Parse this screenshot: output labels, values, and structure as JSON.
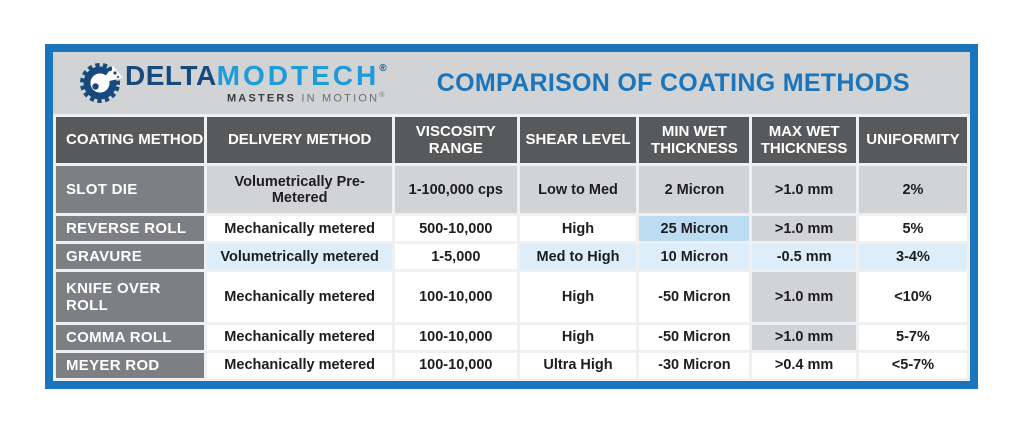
{
  "logo": {
    "delta": "DELTA",
    "modtech": "MODTECH",
    "reg": "®",
    "tagline_bold": "MASTERS",
    "tagline_rest": " IN MOTION",
    "tagline_reg": "®"
  },
  "title": "COMPARISON OF COATING METHODS",
  "chart_data": {
    "type": "table",
    "columns": [
      "COATING METHOD",
      "DELIVERY METHOD",
      "VISCOSITY\nRANGE",
      "SHEAR LEVEL",
      "MIN WET\nTHICKNESS",
      "MAX WET\nTHICKNESS",
      "UNIFORMITY"
    ],
    "rows": [
      {
        "label": "SLOT DIE",
        "cells": [
          {
            "text": "Volumetrically Pre-Metered",
            "bg": "gray"
          },
          {
            "text": "1-100,000 cps",
            "bg": "gray"
          },
          {
            "text": "Low to Med",
            "bg": "gray"
          },
          {
            "text": "2 Micron",
            "bg": "gray"
          },
          {
            "text": ">1.0 mm",
            "bg": "gray"
          },
          {
            "text": "2%",
            "bg": "gray"
          }
        ]
      },
      {
        "label": "REVERSE ROLL",
        "cells": [
          {
            "text": "Mechanically metered",
            "bg": "white"
          },
          {
            "text": "500-10,000",
            "bg": "white"
          },
          {
            "text": "High",
            "bg": "white"
          },
          {
            "text": "25 Micron",
            "bg": "blue"
          },
          {
            "text": ">1.0 mm",
            "bg": "gray"
          },
          {
            "text": "5%",
            "bg": "white"
          }
        ]
      },
      {
        "label": "GRAVURE",
        "cells": [
          {
            "text": "Volumetrically metered",
            "bg": "lightblue"
          },
          {
            "text": "1-5,000",
            "bg": "white"
          },
          {
            "text": "Med to High",
            "bg": "lightblue"
          },
          {
            "text": "10 Micron",
            "bg": "lightblue"
          },
          {
            "text": "-0.5 mm",
            "bg": "lightblue"
          },
          {
            "text": "3-4%",
            "bg": "lightblue"
          }
        ]
      },
      {
        "label": "KNIFE OVER ROLL",
        "cells": [
          {
            "text": "Mechanically metered",
            "bg": "white"
          },
          {
            "text": "100-10,000",
            "bg": "white"
          },
          {
            "text": "High",
            "bg": "white"
          },
          {
            "text": "-50 Micron",
            "bg": "white"
          },
          {
            "text": ">1.0 mm",
            "bg": "gray"
          },
          {
            "text": "<10%",
            "bg": "white"
          }
        ]
      },
      {
        "label": "COMMA ROLL",
        "cells": [
          {
            "text": "Mechanically metered",
            "bg": "white"
          },
          {
            "text": "100-10,000",
            "bg": "white"
          },
          {
            "text": "High",
            "bg": "white"
          },
          {
            "text": "-50 Micron",
            "bg": "white"
          },
          {
            "text": ">1.0 mm",
            "bg": "gray"
          },
          {
            "text": "5-7%",
            "bg": "white"
          }
        ]
      },
      {
        "label": "MEYER ROD",
        "cells": [
          {
            "text": "Mechanically metered",
            "bg": "white"
          },
          {
            "text": "100-10,000",
            "bg": "white"
          },
          {
            "text": "Ultra High",
            "bg": "white"
          },
          {
            "text": "-30 Micron",
            "bg": "white"
          },
          {
            "text": ">0.4 mm",
            "bg": "white"
          },
          {
            "text": "<5-7%",
            "bg": "white"
          }
        ]
      }
    ]
  },
  "colors": {
    "frame_blue": "#1b75bc",
    "panel_gray": "#d1d3d4",
    "header_bg": "#58595b",
    "row_label_bg": "#7d7f82",
    "cell": {
      "gray": "#d2d3d5",
      "white": "#ffffff",
      "blue": "#bcdcf2",
      "lightblue": "#ddeefa"
    },
    "title_blue": "#1b75bc",
    "logo_navy": "#17497c",
    "logo_blue": "#1e9cd9"
  }
}
